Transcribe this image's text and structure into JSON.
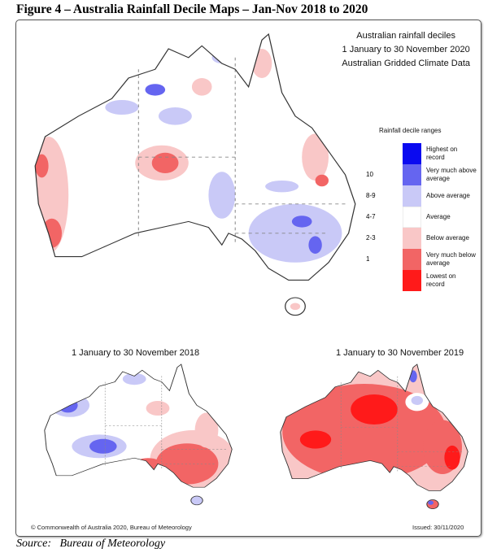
{
  "title": "Figure 4 – Australia Rainfall Decile Maps – Jan-Nov 2018 to 2020",
  "header": {
    "line1": "Australian rainfall deciles",
    "line2": "1 January to 30 November 2020",
    "line3": "Australian Gridded Climate Data"
  },
  "legend": {
    "title": "Rainfall decile ranges",
    "items": [
      {
        "range": "",
        "label": "Highest on record",
        "color": "#0a0af0"
      },
      {
        "range": "10",
        "label": "Very much above average",
        "color": "#6565f0"
      },
      {
        "range": "8-9",
        "label": "Above average",
        "color": "#c9c9f7"
      },
      {
        "range": "4-7",
        "label": "Average",
        "color": "#ffffff"
      },
      {
        "range": "2-3",
        "label": "Below average",
        "color": "#f9c7c7"
      },
      {
        "range": "1",
        "label": "Very much below average",
        "color": "#f26565"
      },
      {
        "range": "",
        "label": "Lowest on record",
        "color": "#ff1a1a"
      }
    ]
  },
  "maps": {
    "map_2018": "1 January to 30 November 2018",
    "map_2019": "1 January to 30 November 2019"
  },
  "footer": {
    "copyright": "© Commonwealth of Australia 2020, Bureau of Meteorology",
    "issued": "Issued: 30/11/2020"
  },
  "source": "Source:   Bureau of Meteorology"
}
